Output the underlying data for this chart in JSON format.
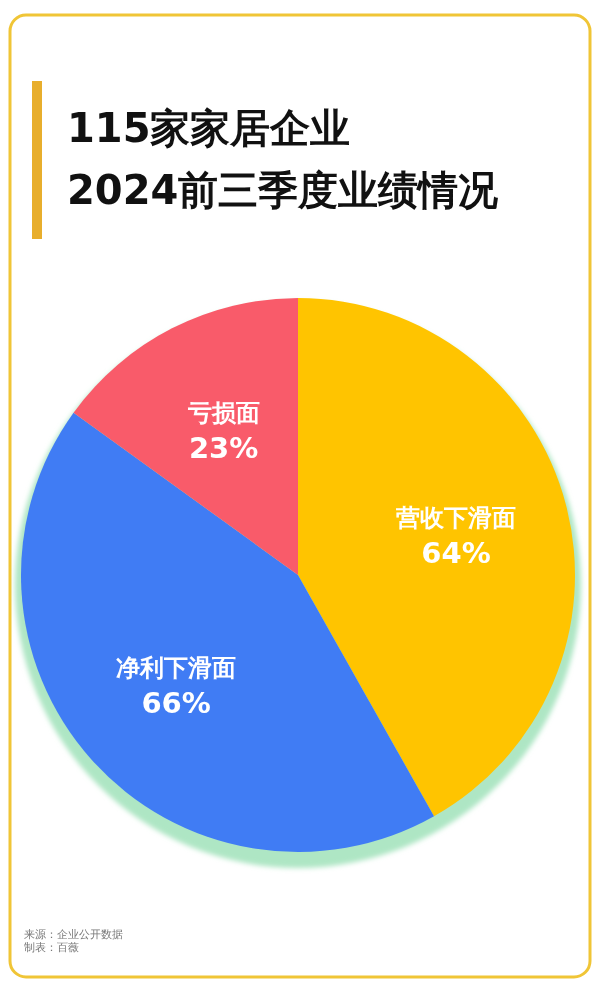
{
  "chart_data": {
    "type": "pie",
    "title": "115家家居企业\n2024前三季度业绩情况",
    "categories": [
      "营收下滑面",
      "净利下滑面",
      "亏损面"
    ],
    "values": [
      64,
      66,
      23
    ],
    "value_labels": [
      "64%",
      "66%",
      "23%"
    ],
    "colors": [
      "#ffc400",
      "#407cf4",
      "#f95b6a"
    ],
    "annotations": [
      "来源：企业公开数据",
      "制表：百薇"
    ]
  }
}
